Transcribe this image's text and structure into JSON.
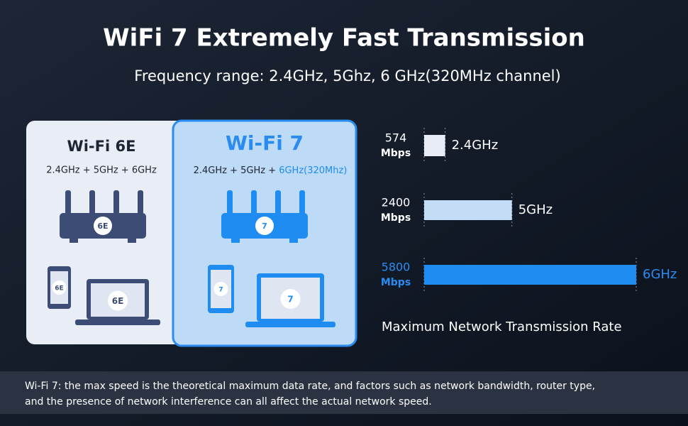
{
  "header": {
    "title": "WiFi 7 Extremely Fast Transmission",
    "subtitle": "Frequency range: 2.4GHz, 5Ghz, 6 GHz(320MHz channel)"
  },
  "cards": [
    {
      "title": "Wi-Fi 6E",
      "bands": "2.4GHz + 5GHz + 6GHz",
      "badge": "6E"
    },
    {
      "title": "Wi-Fi 7",
      "bands": "2.4GHz + 5GHz + ",
      "bands_highlight": "6GHz(320Mhz)",
      "badge": "7"
    }
  ],
  "chart_data": {
    "type": "bar",
    "orientation": "horizontal",
    "categories": [
      "2.4GHz",
      "5GHz",
      "6GHz"
    ],
    "values": [
      574,
      2400,
      5800
    ],
    "unit": "Mbps",
    "colors": [
      "#e8ecf6",
      "#c4dcf6",
      "#1e8cf0"
    ],
    "label_colors": [
      "#ffffff",
      "#ffffff",
      "#2a8cf0"
    ],
    "xlim": [
      0,
      5800
    ],
    "caption": "Maximum Network Transmission Rate"
  },
  "footer": {
    "lines": [
      "Wi-Fi 7: the max speed is the theoretical maximum data rate, and factors such as network bandwidth, router type,",
      "and the presence of network interference can all affect the actual network speed."
    ]
  }
}
